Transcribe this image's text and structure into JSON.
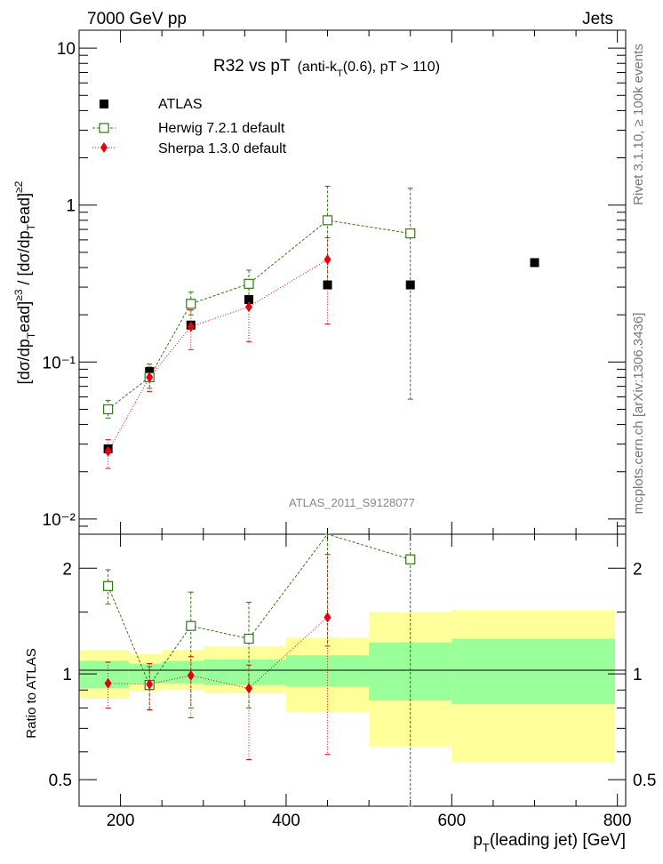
{
  "header": {
    "left": "7000 GeV pp",
    "right": "Jets"
  },
  "side_text": {
    "rivet": "Rivet 3.1.10, ≥ 100k events",
    "mcplots": "mcplots.cern.ch [arXiv:1306.3436]"
  },
  "chart_data": {
    "type": "scatter",
    "title": "R32 vs pT  (anti-kT(0.6), pT > 110)",
    "analysis_label": "ATLAS_2011_S9128077",
    "xlabel": "pT(leading jet) [GeV]",
    "ylabel": "[dσ/dpTead]≥3 / [dσ/dpTead]≥2",
    "xlim": [
      150,
      810
    ],
    "x_ticks": [
      "200",
      "400",
      "600",
      "800"
    ],
    "main": {
      "yscale": "log",
      "ylim": [
        0.008,
        13
      ],
      "y_ticks": [
        "10⁻²",
        "10⁻¹",
        "1",
        "10"
      ],
      "series": [
        {
          "name": "ATLAS",
          "color": "#000000",
          "marker": "filled-square",
          "x": [
            185,
            235,
            285,
            355,
            450,
            550,
            700
          ],
          "y": [
            0.028,
            0.087,
            0.172,
            0.25,
            0.31,
            0.31,
            0.43
          ]
        },
        {
          "name": "Herwig 7.2.1 default",
          "color": "#2f7a10",
          "marker": "open-square",
          "line": "dashed",
          "x": [
            185,
            235,
            285,
            355,
            450,
            550
          ],
          "y": [
            0.05,
            0.08,
            0.235,
            0.315,
            0.8,
            0.66
          ],
          "err_low": [
            0.044,
            0.068,
            0.2,
            0.25,
            0.3,
            0.058
          ],
          "err_high": [
            0.057,
            0.093,
            0.28,
            0.385,
            1.32,
            1.28
          ]
        },
        {
          "name": "Sherpa 1.3.0 default",
          "color": "#e8000b",
          "marker": "diamond",
          "line": "dotted",
          "x": [
            185,
            235,
            285,
            355,
            450
          ],
          "y": [
            0.027,
            0.08,
            0.168,
            0.225,
            0.45
          ],
          "err_low": [
            0.021,
            0.065,
            0.12,
            0.135,
            0.175
          ],
          "err_high": [
            0.032,
            0.097,
            0.215,
            0.3,
            0.62
          ]
        }
      ]
    },
    "ratio": {
      "ylabel": "Ratio to ATLAS",
      "yscale": "log",
      "ylim": [
        0.42,
        2.5
      ],
      "y_ticks": [
        "0.5",
        "1",
        "2"
      ],
      "bins": [
        150,
        210,
        250,
        300,
        400,
        500,
        600,
        800
      ],
      "band_inner": [
        [
          0.91,
          1.09
        ],
        [
          0.94,
          1.07
        ],
        [
          0.94,
          1.09
        ],
        [
          0.93,
          1.1
        ],
        [
          0.92,
          1.13
        ],
        [
          0.84,
          1.23
        ],
        [
          0.82,
          1.26
        ]
      ],
      "band_outer": [
        [
          0.85,
          1.17
        ],
        [
          0.89,
          1.14
        ],
        [
          0.9,
          1.17
        ],
        [
          0.88,
          1.2
        ],
        [
          0.78,
          1.27
        ],
        [
          0.62,
          1.5
        ],
        [
          0.56,
          1.52
        ]
      ],
      "series": [
        {
          "name": "Herwig 7.2.1 default",
          "x": [
            185,
            235,
            285,
            355,
            450,
            550
          ],
          "y": [
            1.78,
            0.93,
            1.37,
            1.26,
            2.6,
            2.12
          ],
          "err_low": [
            1.58,
            0.79,
            0.8,
            0.8,
            1.2,
            0.22
          ],
          "err_high": [
            1.98,
            1.05,
            1.71,
            1.6,
            4.2,
            4.0
          ]
        },
        {
          "name": "Sherpa 1.3.0 default",
          "x": [
            185,
            235,
            285,
            355,
            450
          ],
          "y": [
            0.94,
            0.935,
            0.99,
            0.91,
            1.45
          ],
          "err_low": [
            0.8,
            0.79,
            0.75,
            0.57,
            0.59
          ],
          "err_high": [
            1.08,
            1.07,
            1.12,
            1.06,
            2.19
          ]
        }
      ]
    }
  }
}
